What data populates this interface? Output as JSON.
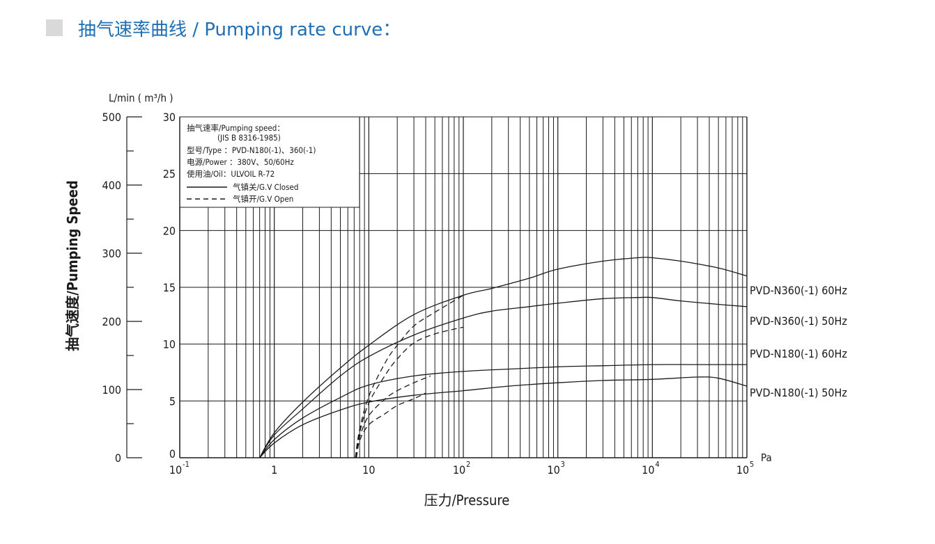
{
  "header": {
    "title": "抽气速率曲线 / Pumping rate curve："
  },
  "chart_data": {
    "type": "line",
    "x_scale": "log",
    "x_unit": "Pa",
    "xlabel": "压力/Pressure",
    "ylabel": "抽气速度/Pumping Speed",
    "y_unit_label": "L/min ( m³/h )",
    "xlim": [
      0.1,
      100000
    ],
    "ylim_m3h": [
      0,
      30
    ],
    "ylim_lmin": [
      0,
      500
    ],
    "x_ticks": [
      {
        "value": 0.1,
        "base": "10",
        "exp": "-1"
      },
      {
        "value": 1,
        "base": "1",
        "exp": ""
      },
      {
        "value": 10,
        "base": "10",
        "exp": ""
      },
      {
        "value": 100,
        "base": "10",
        "exp": "2"
      },
      {
        "value": 1000,
        "base": "10",
        "exp": "3"
      },
      {
        "value": 10000,
        "base": "10",
        "exp": "4"
      },
      {
        "value": 100000,
        "base": "10",
        "exp": "5"
      }
    ],
    "y_ticks_m3h": [
      "0",
      "5",
      "10",
      "15",
      "20",
      "25",
      "30"
    ],
    "y_ticks_lmin": [
      "0",
      "100",
      "200",
      "300",
      "400",
      "500"
    ],
    "grid": true,
    "legend": {
      "lines": [
        "抽气速率/Pumping speed：",
        "(JIS B 8316-1985)",
        "型号/Type ：PVD-N180(-1)、360(-1)",
        "电源/Power ：380V、50/60Hz",
        "使用油/Oil：ULVOIL R-72"
      ],
      "closed_label": "气镇关/G.V Closed",
      "open_label": "气镇开/G.V Open",
      "placement": "top-left"
    },
    "series": [
      {
        "name": "PVD-N360(-1)  60Hz",
        "style": "solid",
        "x": [
          0.7,
          1,
          2,
          5,
          10,
          30,
          100,
          200,
          500,
          1000,
          3000,
          7000,
          10000,
          20000,
          50000,
          100000
        ],
        "y": [
          0,
          2.2,
          4.9,
          7.9,
          9.9,
          12.6,
          14.3,
          14.9,
          15.8,
          16.6,
          17.3,
          17.6,
          17.6,
          17.3,
          16.7,
          16.0
        ]
      },
      {
        "name": "PVD-N360(-1)  50Hz",
        "style": "solid",
        "x": [
          0.7,
          1,
          2,
          5,
          10,
          30,
          100,
          200,
          500,
          1000,
          3000,
          7000,
          10000,
          20000,
          50000,
          100000
        ],
        "y": [
          0,
          2.0,
          4.3,
          7.2,
          8.9,
          10.8,
          12.3,
          12.9,
          13.3,
          13.6,
          14.0,
          14.1,
          14.1,
          13.8,
          13.5,
          13.3
        ]
      },
      {
        "name": "PVD-N180(-1)  60Hz",
        "style": "solid",
        "x": [
          0.7,
          1,
          2,
          5,
          10,
          30,
          100,
          300,
          1000,
          3000,
          10000,
          30000,
          100000
        ],
        "y": [
          0,
          1.6,
          3.5,
          5.3,
          6.4,
          7.2,
          7.6,
          7.8,
          8.0,
          8.1,
          8.2,
          8.2,
          8.2
        ]
      },
      {
        "name": "PVD-N180(-1)  50Hz",
        "style": "solid",
        "x": [
          0.7,
          1,
          2,
          5,
          10,
          30,
          100,
          300,
          1000,
          3000,
          10000,
          30000,
          50000,
          100000
        ],
        "y": [
          0,
          1.3,
          2.9,
          4.2,
          4.9,
          5.5,
          5.9,
          6.3,
          6.6,
          6.8,
          6.9,
          7.1,
          7.0,
          6.3
        ]
      },
      {
        "name": "",
        "style": "dashed",
        "x": [
          7.2,
          8,
          10,
          15,
          20,
          30,
          50,
          100
        ],
        "y": [
          0,
          2.5,
          5.4,
          8.4,
          9.9,
          11.6,
          12.8,
          14.3
        ]
      },
      {
        "name": "",
        "style": "dashed",
        "x": [
          7.3,
          8,
          10,
          15,
          20,
          30,
          50,
          100
        ],
        "y": [
          0,
          2.2,
          4.8,
          7.3,
          8.7,
          10.1,
          10.9,
          11.5
        ]
      },
      {
        "name": "",
        "style": "dashed",
        "x": [
          7.3,
          8,
          10,
          15,
          20,
          30,
          45
        ],
        "y": [
          0,
          1.8,
          3.7,
          5.2,
          5.9,
          6.6,
          7.2
        ]
      },
      {
        "name": "",
        "style": "dashed",
        "x": [
          7.4,
          8,
          10,
          15,
          20,
          30,
          40
        ],
        "y": [
          0,
          1.5,
          2.9,
          3.9,
          4.6,
          5.2,
          5.7
        ]
      }
    ]
  }
}
